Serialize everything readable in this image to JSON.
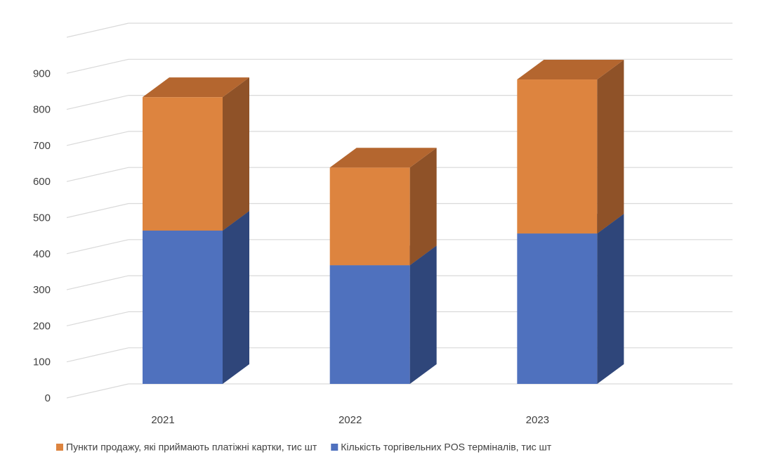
{
  "chart_data": {
    "type": "bar3d_stacked",
    "categories": [
      "2021",
      "2022",
      "2023"
    ],
    "series": [
      {
        "name": "Кількість торгівельних POS терміналів, тис шт",
        "color": "#4f71be",
        "side_color": "#2f467a",
        "top_color": "#3e5a98",
        "values": [
          425,
          329,
          417
        ]
      },
      {
        "name": "Пункти продажу, які приймають платіжні картки, тис шт",
        "color": "#dd843f",
        "side_color": "#8f5228",
        "top_color": "#b4662f",
        "values": [
          370,
          271,
          427
        ]
      }
    ],
    "ylim": [
      0,
      1000
    ],
    "yticks": [
      0,
      100,
      200,
      300,
      400,
      500,
      600,
      700,
      800,
      900
    ],
    "grid": true,
    "legend": "bottom"
  }
}
